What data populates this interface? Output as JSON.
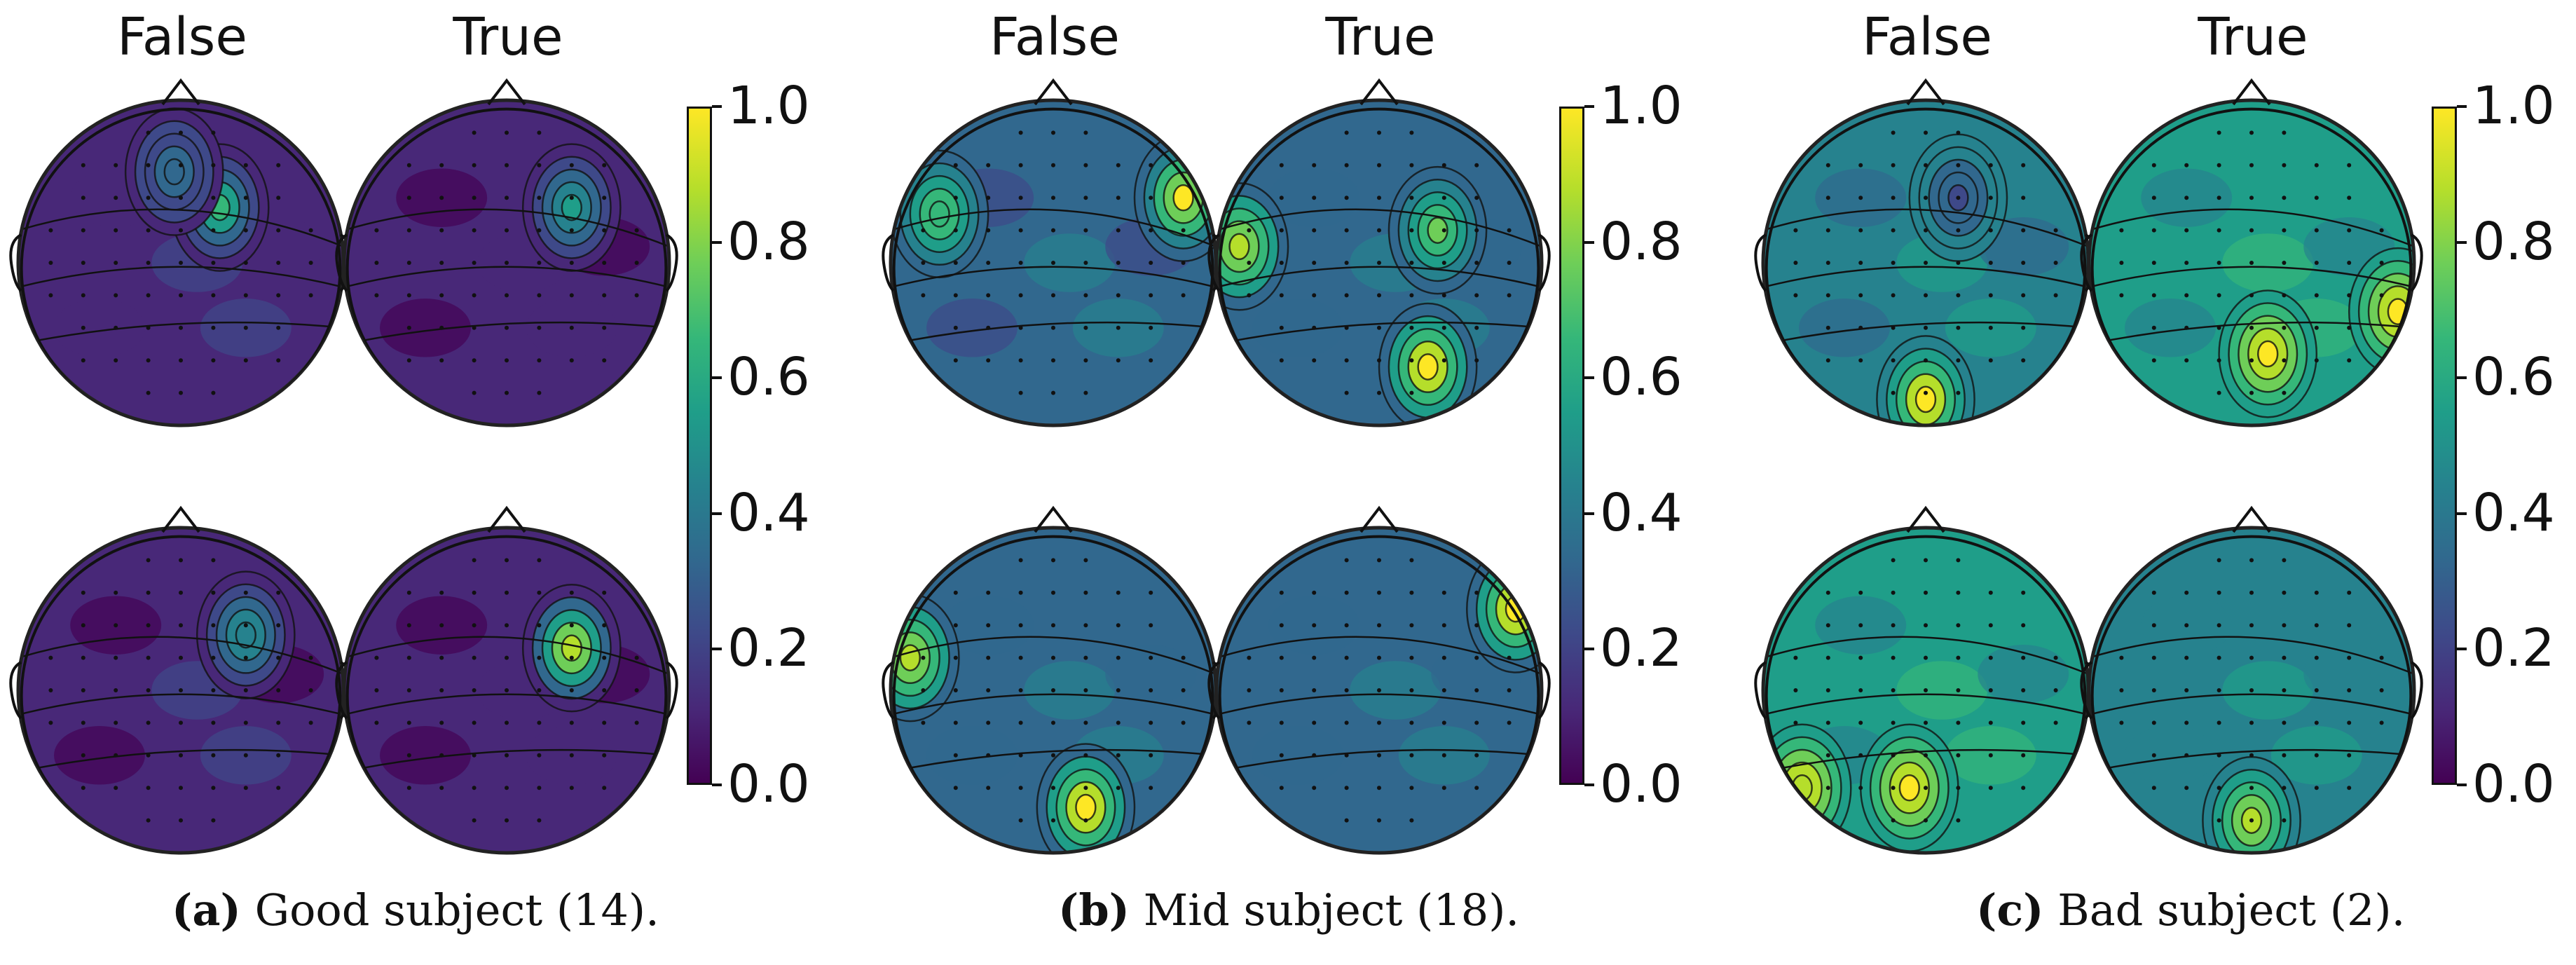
{
  "colorbar_ticks": [
    "0.0",
    "0.2",
    "0.4",
    "0.6",
    "0.8",
    "1.0"
  ],
  "colormap": "viridis",
  "panels": [
    {
      "id": "a",
      "col_titles": [
        "False",
        "True"
      ],
      "caption_label": "(a)",
      "caption_text": "Good subject (14).",
      "topomaps": [
        {
          "row": 1,
          "col": "False",
          "level": 0.18,
          "hotspots": [
            {
              "fx": 0.62,
              "fy": 0.33,
              "v": 0.62
            },
            {
              "fx": 0.48,
              "fy": 0.22,
              "v": 0.35
            }
          ]
        },
        {
          "row": 1,
          "col": "True",
          "level": 0.12,
          "hotspots": [
            {
              "fx": 0.7,
              "fy": 0.33,
              "v": 0.55
            }
          ]
        },
        {
          "row": 2,
          "col": "False",
          "level": 0.15,
          "hotspots": [
            {
              "fx": 0.7,
              "fy": 0.33,
              "v": 0.5
            }
          ]
        },
        {
          "row": 2,
          "col": "True",
          "level": 0.13,
          "hotspots": [
            {
              "fx": 0.7,
              "fy": 0.37,
              "v": 0.9
            }
          ]
        }
      ]
    },
    {
      "id": "b",
      "col_titles": [
        "False",
        "True"
      ],
      "caption_label": "(b)",
      "caption_text": "Mid subject (18).",
      "topomaps": [
        {
          "row": 1,
          "col": "False",
          "level": 0.35,
          "hotspots": [
            {
              "fx": 0.9,
              "fy": 0.3,
              "v": 0.95
            },
            {
              "fx": 0.15,
              "fy": 0.35,
              "v": 0.7
            }
          ]
        },
        {
          "row": 1,
          "col": "True",
          "level": 0.4,
          "hotspots": [
            {
              "fx": 0.07,
              "fy": 0.45,
              "v": 0.9
            },
            {
              "fx": 0.65,
              "fy": 0.82,
              "v": 0.95
            },
            {
              "fx": 0.68,
              "fy": 0.4,
              "v": 0.75
            }
          ]
        },
        {
          "row": 2,
          "col": "False",
          "level": 0.4,
          "hotspots": [
            {
              "fx": 0.06,
              "fy": 0.4,
              "v": 0.85
            },
            {
              "fx": 0.6,
              "fy": 0.86,
              "v": 0.95
            }
          ]
        },
        {
          "row": 2,
          "col": "True",
          "level": 0.4,
          "hotspots": [
            {
              "fx": 0.92,
              "fy": 0.25,
              "v": 0.95
            }
          ]
        }
      ]
    },
    {
      "id": "c",
      "col_titles": [
        "False",
        "True"
      ],
      "caption_label": "(c)",
      "caption_text": "Bad subject (2).",
      "topomaps": [
        {
          "row": 1,
          "col": "False",
          "level": 0.45,
          "hotspots": [
            {
              "fx": 0.5,
              "fy": 0.92,
              "v": 0.95
            },
            {
              "fx": 0.6,
              "fy": 0.3,
              "v": 0.3
            }
          ]
        },
        {
          "row": 1,
          "col": "True",
          "level": 0.55,
          "hotspots": [
            {
              "fx": 0.55,
              "fy": 0.78,
              "v": 0.95
            },
            {
              "fx": 0.95,
              "fy": 0.65,
              "v": 0.95
            }
          ]
        },
        {
          "row": 2,
          "col": "False",
          "level": 0.55,
          "hotspots": [
            {
              "fx": 0.45,
              "fy": 0.8,
              "v": 0.95
            },
            {
              "fx": 0.12,
              "fy": 0.8,
              "v": 0.9
            }
          ]
        },
        {
          "row": 2,
          "col": "True",
          "level": 0.5,
          "hotspots": [
            {
              "fx": 0.5,
              "fy": 0.9,
              "v": 0.9
            }
          ]
        }
      ]
    }
  ]
}
